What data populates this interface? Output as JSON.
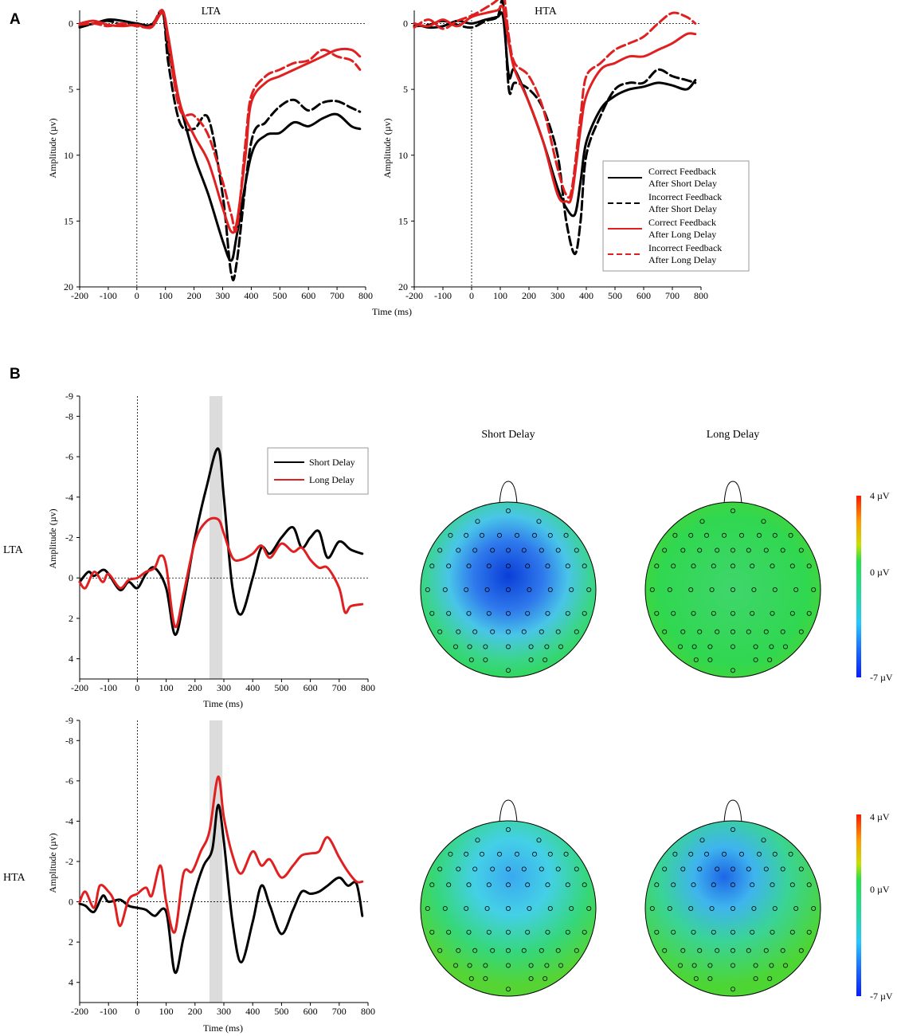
{
  "figure": {
    "panel_a_letter": "A",
    "panel_b_letter": "B",
    "panel_a_titles": [
      "LTA",
      "HTA"
    ],
    "row_labels": [
      "LTA",
      "HTA"
    ],
    "topo_titles": [
      "Short Delay",
      "Long Delay"
    ],
    "colorbar_labels": [
      "4 µV",
      "0 µV",
      "-7 µV"
    ],
    "colors": {
      "black": "#000000",
      "red": "#e02020",
      "window": "#dcdcdc"
    }
  },
  "chart_data": [
    {
      "id": "A-LTA",
      "type": "line",
      "title": "LTA",
      "xlabel": "Time (ms)",
      "ylabel": "Amplitude (µv)",
      "xlim": [
        -200,
        800
      ],
      "ylim": [
        -1,
        20
      ],
      "y_inverted": true,
      "xticks": [
        -200,
        -100,
        0,
        100,
        200,
        300,
        400,
        500,
        600,
        700,
        800
      ],
      "yticks": [
        0,
        5,
        10,
        15,
        20
      ],
      "series": [
        {
          "name": "Correct Feedback After Short Delay",
          "color": "#000000",
          "dash": false,
          "x": [
            -200,
            -150,
            -100,
            -50,
            0,
            50,
            90,
            110,
            150,
            200,
            250,
            300,
            330,
            350,
            400,
            450,
            500,
            550,
            600,
            650,
            700,
            750,
            780
          ],
          "y": [
            0.2,
            0,
            -0.3,
            -0.2,
            0,
            0.1,
            -0.8,
            2,
            6,
            10,
            13,
            16.5,
            18,
            16,
            10,
            8.5,
            8.3,
            7.5,
            7.8,
            7.2,
            6.9,
            7.8,
            8
          ]
        },
        {
          "name": "Incorrect Feedback After Short Delay",
          "color": "#000000",
          "dash": true,
          "x": [
            -200,
            -150,
            -100,
            -50,
            0,
            50,
            90,
            110,
            150,
            200,
            250,
            300,
            330,
            350,
            400,
            450,
            500,
            550,
            600,
            650,
            700,
            750,
            780
          ],
          "y": [
            0.3,
            0,
            -0.2,
            0.1,
            0,
            0.2,
            -0.9,
            3,
            7.5,
            8,
            7.2,
            13,
            19,
            18,
            9,
            7.5,
            6.3,
            5.8,
            6.6,
            6,
            5.9,
            6.4,
            6.7
          ]
        },
        {
          "name": "Correct Feedback After Long Delay",
          "color": "#e02020",
          "dash": false,
          "x": [
            -200,
            -150,
            -100,
            -50,
            0,
            50,
            90,
            110,
            150,
            200,
            250,
            300,
            330,
            350,
            380,
            400,
            450,
            500,
            550,
            600,
            650,
            700,
            750,
            780
          ],
          "y": [
            0,
            -0.2,
            0.1,
            0.2,
            0.1,
            0.3,
            -0.8,
            1,
            6,
            8.5,
            10.5,
            14,
            15.8,
            15,
            10,
            6,
            4.5,
            4,
            3.5,
            3,
            2.5,
            2,
            2,
            2.5
          ]
        },
        {
          "name": "Incorrect Feedback After Long Delay",
          "color": "#e02020",
          "dash": true,
          "x": [
            -200,
            -150,
            -100,
            -50,
            0,
            50,
            90,
            110,
            150,
            200,
            250,
            300,
            330,
            350,
            380,
            400,
            450,
            500,
            550,
            600,
            650,
            700,
            750,
            780
          ],
          "y": [
            0.1,
            0,
            0.2,
            0,
            0.2,
            0.2,
            -1,
            1.5,
            6.5,
            7,
            8.5,
            12,
            14.5,
            15.5,
            9,
            5.5,
            4,
            3.5,
            3,
            2.8,
            2,
            2.5,
            2.8,
            3.5
          ]
        }
      ],
      "legend": [
        {
          "line1": "Correct Feedback",
          "line2": "After Short Delay",
          "color": "#000000",
          "dash": false
        },
        {
          "line1": "Incorrect Feedback",
          "line2": "After Short Delay",
          "color": "#000000",
          "dash": true
        },
        {
          "line1": "Correct Feedback",
          "line2": "After Long Delay",
          "color": "#e02020",
          "dash": false
        },
        {
          "line1": "Incorrect Feedback",
          "line2": "After Long Delay",
          "color": "#e02020",
          "dash": true
        }
      ]
    },
    {
      "id": "A-HTA",
      "type": "line",
      "title": "HTA",
      "xlabel": "Time (ms)",
      "ylabel": "Amplitude (µv)",
      "xlim": [
        -200,
        800
      ],
      "ylim": [
        -1,
        20
      ],
      "y_inverted": true,
      "xticks": [
        -200,
        -100,
        0,
        100,
        200,
        300,
        400,
        500,
        600,
        700,
        800
      ],
      "yticks": [
        0,
        5,
        10,
        15,
        20
      ],
      "series": [
        {
          "name": "Correct Feedback After Short Delay",
          "color": "#000000",
          "dash": false,
          "x": [
            -200,
            -150,
            -100,
            -50,
            0,
            50,
            90,
            110,
            130,
            150,
            200,
            250,
            300,
            330,
            360,
            380,
            400,
            450,
            500,
            550,
            600,
            650,
            700,
            750,
            780
          ],
          "y": [
            0,
            0.3,
            0.2,
            -0.2,
            0,
            -0.3,
            -0.5,
            -0.5,
            4,
            3.5,
            6,
            9,
            12.5,
            14,
            14.5,
            12,
            9,
            6.5,
            5.5,
            5,
            4.8,
            4.5,
            4.7,
            5,
            4.3
          ]
        },
        {
          "name": "Incorrect Feedback After Short Delay",
          "color": "#000000",
          "dash": true,
          "x": [
            -200,
            -150,
            -100,
            -50,
            0,
            50,
            90,
            110,
            130,
            150,
            200,
            250,
            300,
            330,
            360,
            380,
            400,
            450,
            500,
            550,
            600,
            650,
            700,
            750,
            780
          ],
          "y": [
            0.2,
            0.1,
            -0.2,
            0.1,
            0.3,
            -0.2,
            -0.5,
            -1.5,
            5,
            4.5,
            5,
            6.5,
            10,
            15,
            17.5,
            15,
            10,
            7,
            5,
            4.5,
            4.5,
            3.5,
            4,
            4.3,
            4.5
          ]
        },
        {
          "name": "Correct Feedback After Long Delay",
          "color": "#e02020",
          "dash": false,
          "x": [
            -200,
            -150,
            -100,
            -50,
            0,
            50,
            90,
            110,
            130,
            150,
            200,
            250,
            300,
            330,
            350,
            380,
            400,
            450,
            500,
            550,
            600,
            650,
            700,
            750,
            780
          ],
          "y": [
            0,
            0.2,
            -0.3,
            0.2,
            -0.5,
            -0.8,
            -1,
            -1.2,
            1.5,
            3.5,
            6,
            9,
            13,
            13.5,
            13,
            8,
            5.5,
            3.5,
            3,
            2.5,
            2.5,
            2,
            1.5,
            0.8,
            0.8
          ]
        },
        {
          "name": "Incorrect Feedback After Long Delay",
          "color": "#e02020",
          "dash": true,
          "x": [
            -200,
            -150,
            -100,
            -50,
            0,
            50,
            90,
            110,
            130,
            150,
            200,
            250,
            300,
            330,
            350,
            380,
            400,
            450,
            500,
            550,
            600,
            650,
            700,
            750,
            780
          ],
          "y": [
            0.3,
            -0.3,
            0.4,
            -0.2,
            -0.6,
            -1.2,
            -1.8,
            -2.5,
            1,
            3,
            4,
            6.5,
            11,
            13,
            12.5,
            7,
            4,
            3,
            2,
            1.5,
            1,
            0,
            -0.8,
            -0.5,
            0
          ]
        }
      ]
    },
    {
      "id": "B-LTA",
      "type": "line",
      "row": "LTA",
      "xlabel": "Time (ms)",
      "ylabel": "Amplitude (µv)",
      "xlim": [
        -200,
        800
      ],
      "ylim": [
        -9,
        5
      ],
      "y_inverted": true,
      "xticks": [
        -200,
        -100,
        0,
        100,
        200,
        300,
        400,
        500,
        600,
        700,
        800
      ],
      "yticks": [
        -9,
        -8,
        -6,
        -4,
        -2,
        0,
        2,
        4
      ],
      "ytick_labels": [
        "-9",
        "-8",
        "-6",
        "-4",
        "-2",
        "0",
        "2",
        "4"
      ],
      "window_ms": [
        250,
        295
      ],
      "series": [
        {
          "name": "Short Delay",
          "color": "#000000",
          "x": [
            -200,
            -170,
            -150,
            -120,
            -100,
            -60,
            -30,
            0,
            30,
            60,
            100,
            130,
            160,
            200,
            240,
            280,
            300,
            330,
            360,
            400,
            430,
            460,
            500,
            540,
            570,
            600,
            630,
            660,
            700,
            740,
            780
          ],
          "y": [
            0.2,
            -0.3,
            -0.1,
            -0.4,
            -0.2,
            0.6,
            0.2,
            0.5,
            -0.2,
            -0.5,
            0.5,
            2.8,
            1.2,
            -2,
            -4.5,
            -6.4,
            -4,
            0.5,
            1.8,
            0,
            -1.5,
            -1.2,
            -2,
            -2.5,
            -1.5,
            -2,
            -2.3,
            -1,
            -1.8,
            -1.4,
            -1.2
          ]
        },
        {
          "name": "Long Delay",
          "color": "#e02020",
          "x": [
            -200,
            -180,
            -150,
            -120,
            -100,
            -60,
            -30,
            0,
            30,
            60,
            80,
            100,
            130,
            160,
            200,
            240,
            280,
            300,
            330,
            360,
            400,
            430,
            460,
            500,
            540,
            570,
            600,
            630,
            660,
            700,
            720,
            740,
            780
          ],
          "y": [
            0.2,
            0.5,
            -0.3,
            0.2,
            -0.2,
            0.5,
            0.1,
            0,
            -0.3,
            -0.5,
            -1.1,
            -0.6,
            2.4,
            0.8,
            -1.8,
            -2.8,
            -2.9,
            -2.2,
            -1,
            -0.9,
            -1.2,
            -1.6,
            -1,
            -1.7,
            -1.3,
            -1.5,
            -0.9,
            -0.5,
            -0.5,
            0.5,
            1.7,
            1.4,
            1.3
          ]
        }
      ],
      "legend": [
        {
          "label": "Short Delay",
          "color": "#000000"
        },
        {
          "label": "Long Delay",
          "color": "#e02020"
        }
      ]
    },
    {
      "id": "B-HTA",
      "type": "line",
      "row": "HTA",
      "xlabel": "Time (ms)",
      "ylabel": "Amplitude (µv)",
      "xlim": [
        -200,
        800
      ],
      "ylim": [
        -9,
        5
      ],
      "y_inverted": true,
      "xticks": [
        -200,
        -100,
        0,
        100,
        200,
        300,
        400,
        500,
        600,
        700,
        800
      ],
      "yticks": [
        -9,
        -8,
        -6,
        -4,
        -2,
        0,
        2,
        4
      ],
      "ytick_labels": [
        "-9",
        "-8",
        "-6",
        "-4",
        "-2",
        "0",
        "2",
        "4"
      ],
      "window_ms": [
        250,
        295
      ],
      "series": [
        {
          "name": "Short Delay",
          "color": "#000000",
          "x": [
            -200,
            -180,
            -150,
            -120,
            -100,
            -60,
            -30,
            0,
            30,
            60,
            100,
            130,
            160,
            200,
            230,
            260,
            280,
            300,
            330,
            360,
            400,
            430,
            460,
            500,
            540,
            570,
            600,
            630,
            660,
            700,
            730,
            760,
            780
          ],
          "y": [
            0.1,
            0.2,
            0.5,
            -0.3,
            0,
            -0.1,
            0.2,
            0.3,
            0.4,
            0.7,
            0.5,
            3.5,
            1.8,
            -0.5,
            -1.8,
            -2.6,
            -4.8,
            -3,
            1,
            3,
            1,
            -0.8,
            0.2,
            1.6,
            0.4,
            -0.5,
            -0.4,
            -0.5,
            -0.8,
            -1.2,
            -0.8,
            -0.9,
            0.7
          ]
        },
        {
          "name": "Long Delay",
          "color": "#e02020",
          "x": [
            -200,
            -180,
            -150,
            -130,
            -100,
            -80,
            -60,
            -30,
            0,
            30,
            50,
            80,
            100,
            130,
            160,
            190,
            220,
            250,
            280,
            300,
            330,
            360,
            400,
            430,
            460,
            500,
            540,
            570,
            600,
            630,
            660,
            700,
            730,
            760,
            780
          ],
          "y": [
            0,
            -0.5,
            0.3,
            -0.8,
            -0.5,
            0,
            1.2,
            -0.1,
            -0.4,
            -0.7,
            -0.3,
            -1.8,
            0,
            1.5,
            -1.4,
            -1.5,
            -2.5,
            -3.5,
            -6.2,
            -4.2,
            -2.3,
            -1.4,
            -2.5,
            -1.8,
            -2.1,
            -1.2,
            -1.8,
            -2.3,
            -2.4,
            -2.5,
            -3.2,
            -2.2,
            -1.5,
            -1,
            -1
          ]
        }
      ]
    }
  ]
}
